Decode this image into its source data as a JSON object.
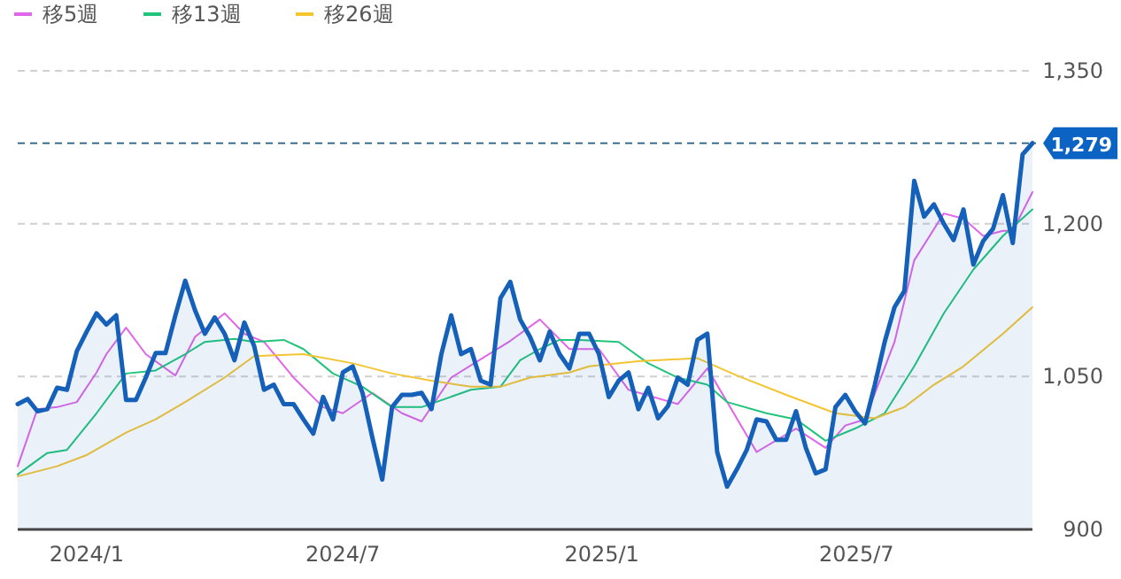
{
  "chart_data": {
    "type": "line",
    "legend": "top left",
    "grid": "y",
    "ylim": [
      900,
      1350
    ],
    "yticks": [
      {
        "value": 900,
        "label": "900"
      },
      {
        "value": 1050,
        "label": "1,050"
      },
      {
        "value": 1200,
        "label": "1,200"
      },
      {
        "value": 1350,
        "label": "1,350"
      }
    ],
    "xlim": [
      "2023-11-13",
      "2025-11-03"
    ],
    "xticks": [
      {
        "value": "2024-01-01",
        "label": "2024/1"
      },
      {
        "value": "2024-07-01",
        "label": "2024/7"
      },
      {
        "value": "2025-01-01",
        "label": "2025/1"
      },
      {
        "value": "2025-07-01",
        "label": "2025/7"
      }
    ],
    "x": [
      "2023-11-13",
      "2023-11-20",
      "2023-11-27",
      "2023-12-04",
      "2023-12-11",
      "2023-12-18",
      "2023-12-25",
      "2024-01-01",
      "2024-01-08",
      "2024-01-15",
      "2024-01-22",
      "2024-01-29",
      "2024-02-05",
      "2024-02-12",
      "2024-02-19",
      "2024-02-26",
      "2024-03-04",
      "2024-03-11",
      "2024-03-18",
      "2024-03-25",
      "2024-04-01",
      "2024-04-08",
      "2024-04-15",
      "2024-04-22",
      "2024-04-29",
      "2024-05-06",
      "2024-05-13",
      "2024-05-20",
      "2024-05-27",
      "2024-06-03",
      "2024-06-10",
      "2024-06-17",
      "2024-06-24",
      "2024-07-01",
      "2024-07-08",
      "2024-07-15",
      "2024-07-22",
      "2024-07-29",
      "2024-08-05",
      "2024-08-12",
      "2024-08-19",
      "2024-08-26",
      "2024-09-02",
      "2024-09-09",
      "2024-09-16",
      "2024-09-23",
      "2024-09-30",
      "2024-10-07",
      "2024-10-14",
      "2024-10-21",
      "2024-10-28",
      "2024-11-04",
      "2024-11-11",
      "2024-11-18",
      "2024-11-25",
      "2024-12-02",
      "2024-12-09",
      "2024-12-16",
      "2024-12-23",
      "2024-12-30",
      "2025-01-06",
      "2025-01-13",
      "2025-01-20",
      "2025-01-27",
      "2025-02-03",
      "2025-02-10",
      "2025-02-17",
      "2025-02-24",
      "2025-03-03",
      "2025-03-10",
      "2025-03-17",
      "2025-03-24",
      "2025-03-31",
      "2025-04-07",
      "2025-04-14",
      "2025-04-21",
      "2025-04-28",
      "2025-05-05",
      "2025-05-12",
      "2025-05-19",
      "2025-05-26",
      "2025-06-02",
      "2025-06-09",
      "2025-06-16",
      "2025-06-23",
      "2025-06-30",
      "2025-07-07",
      "2025-07-14",
      "2025-07-21",
      "2025-07-28",
      "2025-08-04",
      "2025-08-11",
      "2025-08-18",
      "2025-08-25",
      "2025-09-01",
      "2025-09-08",
      "2025-09-15",
      "2025-09-22",
      "2025-09-29",
      "2025-10-06",
      "2025-10-13",
      "2025-10-20",
      "2025-10-27",
      "2025-11-03"
    ],
    "series": [
      {
        "type": "area",
        "color": "#1560b8",
        "values": [
          1023,
          1028,
          1016,
          1018,
          1039,
          1037,
          1075,
          1094,
          1112,
          1101,
          1110,
          1027,
          1027,
          1049,
          1073,
          1073,
          1110,
          1144,
          1115,
          1092,
          1108,
          1092,
          1066,
          1103,
          1080,
          1037,
          1042,
          1023,
          1023,
          1008,
          994,
          1030,
          1008,
          1054,
          1060,
          1034,
          990,
          949,
          1020,
          1032,
          1032,
          1034,
          1018,
          1072,
          1110,
          1072,
          1077,
          1046,
          1042,
          1127,
          1143,
          1106,
          1089,
          1066,
          1094,
          1072,
          1058,
          1092,
          1092,
          1072,
          1030,
          1046,
          1054,
          1018,
          1039,
          1009,
          1021,
          1049,
          1042,
          1086,
          1092,
          976,
          942,
          959,
          978,
          1008,
          1006,
          988,
          988,
          1016,
          980,
          955,
          959,
          1020,
          1032,
          1016,
          1004,
          1042,
          1084,
          1118,
          1134,
          1242,
          1207,
          1219,
          1200,
          1184,
          1214,
          1160,
          1183,
          1195,
          1228,
          1181,
          1268,
          1279
        ]
      },
      {
        "name": "移5週",
        "color": "#e266e8",
        "x": [
          "2023-11-13",
          "2023-11-27",
          "2023-12-11",
          "2023-12-25",
          "2024-01-08",
          "2024-01-15",
          "2024-01-29",
          "2024-02-12",
          "2024-03-04",
          "2024-03-18",
          "2024-04-08",
          "2024-04-22",
          "2024-05-06",
          "2024-05-27",
          "2024-06-17",
          "2024-07-01",
          "2024-07-22",
          "2024-08-12",
          "2024-08-26",
          "2024-09-16",
          "2024-10-14",
          "2024-10-28",
          "2024-11-18",
          "2024-12-09",
          "2024-12-30",
          "2025-01-20",
          "2025-02-24",
          "2025-03-17",
          "2025-04-21",
          "2025-05-19",
          "2025-06-09",
          "2025-06-23",
          "2025-07-07",
          "2025-07-28",
          "2025-08-11",
          "2025-09-01",
          "2025-09-15",
          "2025-09-29",
          "2025-10-13",
          "2025-10-20",
          "2025-11-03"
        ],
        "values": [
          962,
          1018,
          1020,
          1025,
          1054,
          1072,
          1098,
          1072,
          1051,
          1089,
          1112,
          1092,
          1084,
          1049,
          1020,
          1014,
          1034,
          1014,
          1006,
          1049,
          1073,
          1085,
          1106,
          1077,
          1077,
          1037,
          1023,
          1058,
          976,
          999,
          980,
          1002,
          1008,
          1084,
          1164,
          1210,
          1205,
          1188,
          1193,
          1193,
          1231
        ]
      },
      {
        "name": "移13週",
        "color": "#22c47a",
        "x": [
          "2023-11-13",
          "2023-12-04",
          "2023-12-18",
          "2024-01-08",
          "2024-01-29",
          "2024-02-19",
          "2024-03-11",
          "2024-03-25",
          "2024-04-15",
          "2024-04-29",
          "2024-05-20",
          "2024-06-03",
          "2024-06-24",
          "2024-07-15",
          "2024-08-05",
          "2024-08-26",
          "2024-09-30",
          "2024-10-21",
          "2024-11-04",
          "2024-11-18",
          "2024-12-02",
          "2024-12-16",
          "2025-01-13",
          "2025-02-03",
          "2025-02-24",
          "2025-03-17",
          "2025-03-31",
          "2025-04-28",
          "2025-05-19",
          "2025-06-09",
          "2025-06-30",
          "2025-07-21",
          "2025-08-11",
          "2025-09-01",
          "2025-09-22",
          "2025-10-13",
          "2025-11-03"
        ],
        "values": [
          954,
          975,
          978,
          1014,
          1053,
          1056,
          1072,
          1084,
          1087,
          1084,
          1086,
          1077,
          1053,
          1040,
          1020,
          1020,
          1037,
          1040,
          1066,
          1077,
          1086,
          1086,
          1084,
          1063,
          1049,
          1042,
          1025,
          1014,
          1008,
          987,
          999,
          1014,
          1060,
          1112,
          1155,
          1188,
          1214
        ]
      },
      {
        "name": "移26週",
        "color": "#f4c431",
        "x": [
          "2023-11-13",
          "2023-12-11",
          "2024-01-01",
          "2024-01-29",
          "2024-02-19",
          "2024-03-11",
          "2024-04-08",
          "2024-04-29",
          "2024-06-03",
          "2024-07-08",
          "2024-08-05",
          "2024-09-02",
          "2024-09-30",
          "2024-10-21",
          "2024-11-11",
          "2024-12-09",
          "2024-12-23",
          "2025-01-27",
          "2025-03-10",
          "2025-04-07",
          "2025-05-12",
          "2025-06-16",
          "2025-07-14",
          "2025-08-04",
          "2025-08-25",
          "2025-09-15",
          "2025-10-13",
          "2025-11-03"
        ],
        "values": [
          952,
          962,
          973,
          995,
          1008,
          1025,
          1049,
          1070,
          1072,
          1063,
          1053,
          1046,
          1040,
          1040,
          1049,
          1054,
          1060,
          1065,
          1068,
          1051,
          1032,
          1014,
          1009,
          1020,
          1042,
          1060,
          1092,
          1118
        ]
      }
    ],
    "ref_lines": [
      {
        "axis": "y",
        "value": 1279,
        "label": "1,279",
        "color": "#3d6f8c",
        "line_style": "dashed"
      }
    ]
  }
}
